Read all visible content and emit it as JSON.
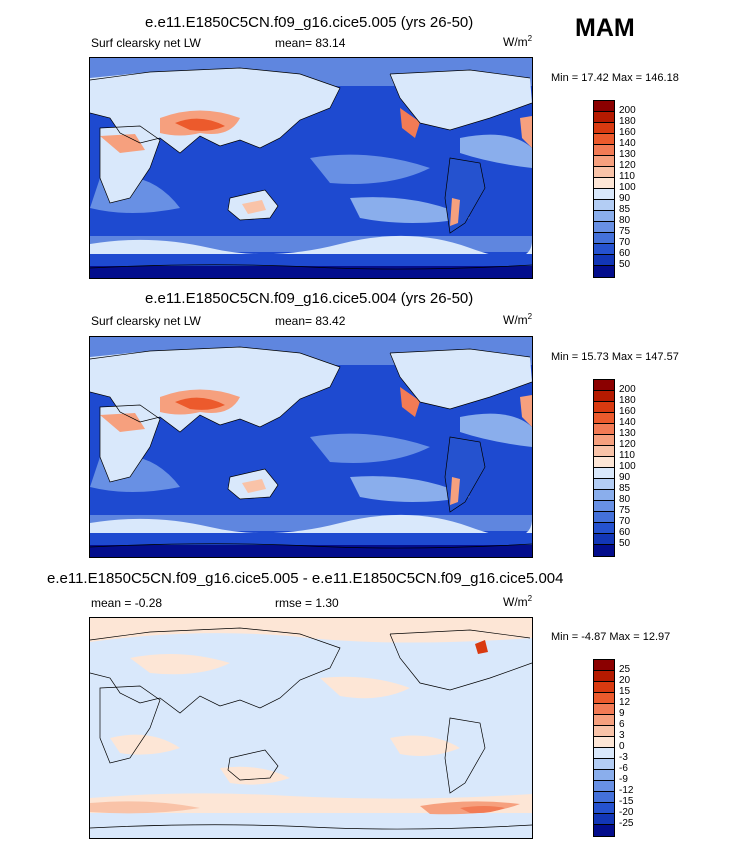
{
  "season": "MAM",
  "panels": [
    {
      "title": "e.e11.E1850C5CN.f09_g16.cice5.005 (yrs 26-50)",
      "left_label": "Surf clearsky net LW",
      "center_label": "mean=  83.14",
      "units_base": "W/m",
      "units_exp": "2",
      "minmax": "Min =  17.42 Max = 146.18",
      "colorbar": {
        "labels": [
          "200",
          "180",
          "160",
          "140",
          "130",
          "120",
          "110",
          "100",
          "90",
          "85",
          "80",
          "75",
          "70",
          "60",
          "50"
        ],
        "colors": [
          "#8b0000",
          "#b51a00",
          "#d93a10",
          "#ec5a2c",
          "#f27b55",
          "#f6a07e",
          "#f9c3a8",
          "#fde6d6",
          "#d9e8fb",
          "#b3cdf4",
          "#8aaeec",
          "#6890e4",
          "#4471da",
          "#2552cf",
          "#1236b6",
          "#030d8c"
        ]
      }
    },
    {
      "title": "e.e11.E1850C5CN.f09_g16.cice5.004 (yrs 26-50)",
      "left_label": "Surf clearsky net LW",
      "center_label": "mean=  83.42",
      "units_base": "W/m",
      "units_exp": "2",
      "minmax": "Min =  15.73 Max = 147.57",
      "colorbar": {
        "labels": [
          "200",
          "180",
          "160",
          "140",
          "130",
          "120",
          "110",
          "100",
          "90",
          "85",
          "80",
          "75",
          "70",
          "60",
          "50"
        ],
        "colors": [
          "#8b0000",
          "#b51a00",
          "#d93a10",
          "#ec5a2c",
          "#f27b55",
          "#f6a07e",
          "#f9c3a8",
          "#fde6d6",
          "#d9e8fb",
          "#b3cdf4",
          "#8aaeec",
          "#6890e4",
          "#4471da",
          "#2552cf",
          "#1236b6",
          "#030d8c"
        ]
      }
    },
    {
      "title": "e.e11.E1850C5CN.f09_g16.cice5.005 - e.e11.E1850C5CN.f09_g16.cice5.004",
      "left_label": "mean =  -0.28",
      "center_label": "rmse =  1.30",
      "units_base": "W/m",
      "units_exp": "2",
      "minmax": "Min =  -4.87 Max =  12.97",
      "colorbar": {
        "labels": [
          "25",
          "20",
          "15",
          "12",
          "9",
          "6",
          "3",
          "0",
          "-3",
          "-6",
          "-9",
          "-12",
          "-15",
          "-20",
          "-25"
        ],
        "colors": [
          "#8b0000",
          "#b51a00",
          "#d93a10",
          "#ec5a2c",
          "#f27b55",
          "#f6a07e",
          "#f9c3a8",
          "#fde6d6",
          "#d9e8fb",
          "#b3cdf4",
          "#8aaeec",
          "#6890e4",
          "#4471da",
          "#2552cf",
          "#1236b6",
          "#030d8c"
        ]
      }
    }
  ]
}
